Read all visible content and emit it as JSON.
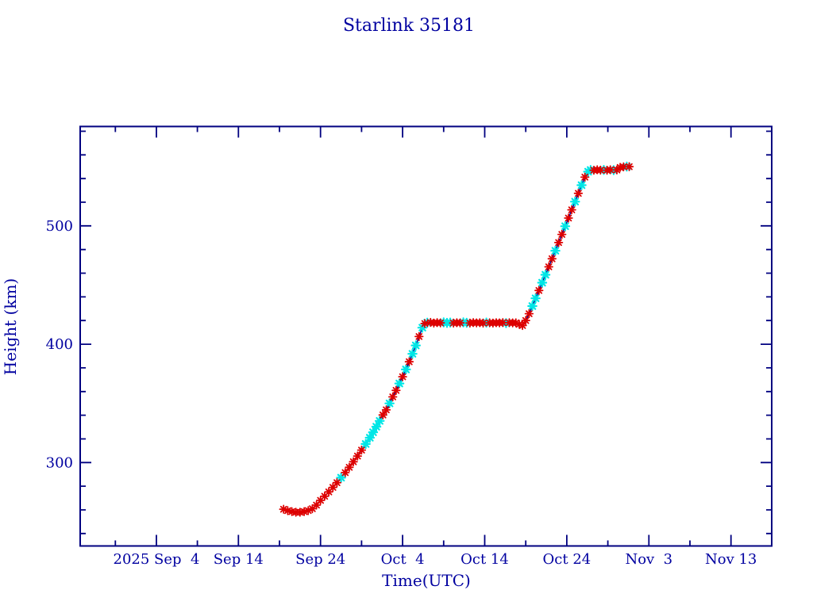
{
  "chart": {
    "title": "Starlink 35181",
    "xlabel": "Time(UTC)",
    "ylabel": "Height (km)"
  },
  "chart_data": {
    "type": "line",
    "title": "Starlink 35181",
    "xlabel": "Time(UTC)",
    "ylabel": "Height (km)",
    "x_unit": "days since 2025-09-04 00:00 UTC",
    "x_range_days": [
      -9.28,
      74.96
    ],
    "y_range_km": [
      229.5,
      584.0
    ],
    "grid": false,
    "legend": "none",
    "ticks_inward_all_sides": true,
    "x_ticks": {
      "major": [
        {
          "day": 0,
          "label": "2025 Sep  4"
        },
        {
          "day": 10,
          "label": "Sep 14"
        },
        {
          "day": 20,
          "label": "Sep 24"
        },
        {
          "day": 30,
          "label": "Oct  4"
        },
        {
          "day": 40,
          "label": "Oct 14"
        },
        {
          "day": 50,
          "label": "Oct 24"
        },
        {
          "day": 60,
          "label": "Nov  3"
        },
        {
          "day": 70,
          "label": "Nov 13"
        }
      ],
      "minor_days": [
        -5,
        5,
        15,
        25,
        35,
        45,
        55,
        65
      ]
    },
    "y_ticks": {
      "major": [
        {
          "km": 300,
          "label": "300"
        },
        {
          "km": 400,
          "label": "400"
        },
        {
          "km": 500,
          "label": "500"
        }
      ],
      "minor_km": [
        240,
        260,
        280,
        320,
        340,
        360,
        380,
        420,
        440,
        460,
        480,
        520,
        540,
        560,
        580
      ]
    },
    "colors": {
      "background": "#ffffff",
      "axis": "#000080",
      "text": "#0000a0",
      "line": "#00008b",
      "marker_red": "#dd0000",
      "marker_cyan": "#00e6e6"
    },
    "series": [
      {
        "name": "height_km",
        "marker": "asterisk",
        "points": [
          [
            15.5,
            260.5,
            "r"
          ],
          [
            16.0,
            259.3,
            "r"
          ],
          [
            16.5,
            258.5,
            "r"
          ],
          [
            17.0,
            258.0,
            "r"
          ],
          [
            17.5,
            258.0,
            "r"
          ],
          [
            18.0,
            258.5,
            "r"
          ],
          [
            18.5,
            259.4,
            "r"
          ],
          [
            19.0,
            261.0,
            "r"
          ],
          [
            19.5,
            264.0,
            "r"
          ],
          [
            20.0,
            268.0,
            "r"
          ],
          [
            20.5,
            271.5,
            "r"
          ],
          [
            21.0,
            275.2,
            "r"
          ],
          [
            21.5,
            279.0,
            "r"
          ],
          [
            22.0,
            283.0,
            "r"
          ],
          [
            22.5,
            287.2,
            "c"
          ],
          [
            23.0,
            291.5,
            "r"
          ],
          [
            23.5,
            296.0,
            "r"
          ],
          [
            24.0,
            300.7,
            "r"
          ],
          [
            24.5,
            305.5,
            "r"
          ],
          [
            25.0,
            310.5,
            "r"
          ],
          [
            25.5,
            315.7,
            "c"
          ],
          [
            26.0,
            321.0,
            "c"
          ],
          [
            26.4,
            325.6,
            "c"
          ],
          [
            26.8,
            330.3,
            "c"
          ],
          [
            27.2,
            335.2,
            "c"
          ],
          [
            27.6,
            340.2,
            "r"
          ],
          [
            28.0,
            344.5,
            "r"
          ],
          [
            28.4,
            350.0,
            "c"
          ],
          [
            28.8,
            355.5,
            "r"
          ],
          [
            29.2,
            361.0,
            "r"
          ],
          [
            29.6,
            366.8,
            "c"
          ],
          [
            30.0,
            372.5,
            "r"
          ],
          [
            30.4,
            378.7,
            "c"
          ],
          [
            30.8,
            385.2,
            "r"
          ],
          [
            31.2,
            391.9,
            "c"
          ],
          [
            31.6,
            399.0,
            "c"
          ],
          [
            32.0,
            406.5,
            "r"
          ],
          [
            32.4,
            414.0,
            "c"
          ],
          [
            32.7,
            417.5,
            "r"
          ],
          [
            33.0,
            418.2,
            "c"
          ],
          [
            33.4,
            418.4,
            "r"
          ],
          [
            33.8,
            417.9,
            "r"
          ],
          [
            34.2,
            418.3,
            "r"
          ],
          [
            34.6,
            418.0,
            "r"
          ],
          [
            35.0,
            418.4,
            "c"
          ],
          [
            35.4,
            418.0,
            "c"
          ],
          [
            35.8,
            418.3,
            "c"
          ],
          [
            36.2,
            417.9,
            "r"
          ],
          [
            36.6,
            418.2,
            "r"
          ],
          [
            37.0,
            418.0,
            "r"
          ],
          [
            37.4,
            418.4,
            "c"
          ],
          [
            37.8,
            418.1,
            "c"
          ],
          [
            38.2,
            417.9,
            "r"
          ],
          [
            38.6,
            418.3,
            "r"
          ],
          [
            39.0,
            418.0,
            "r"
          ],
          [
            39.4,
            418.2,
            "r"
          ],
          [
            39.8,
            417.9,
            "r"
          ],
          [
            40.2,
            418.3,
            "c"
          ],
          [
            40.6,
            418.1,
            "r"
          ],
          [
            41.0,
            417.9,
            "r"
          ],
          [
            41.4,
            418.2,
            "r"
          ],
          [
            41.8,
            418.0,
            "r"
          ],
          [
            42.2,
            418.3,
            "r"
          ],
          [
            42.6,
            417.9,
            "c"
          ],
          [
            43.0,
            418.2,
            "r"
          ],
          [
            43.4,
            418.0,
            "r"
          ],
          [
            43.8,
            418.1,
            "r"
          ],
          [
            44.2,
            416.8,
            "r"
          ],
          [
            44.6,
            415.8,
            "r"
          ],
          [
            45.0,
            420.0,
            "r"
          ],
          [
            45.4,
            425.8,
            "r"
          ],
          [
            45.8,
            432.2,
            "c"
          ],
          [
            46.2,
            438.8,
            "c"
          ],
          [
            46.6,
            445.4,
            "r"
          ],
          [
            47.0,
            452.0,
            "c"
          ],
          [
            47.4,
            458.7,
            "c"
          ],
          [
            47.8,
            465.4,
            "r"
          ],
          [
            48.2,
            472.2,
            "r"
          ],
          [
            48.6,
            479.0,
            "c"
          ],
          [
            49.0,
            485.9,
            "r"
          ],
          [
            49.4,
            492.8,
            "r"
          ],
          [
            49.8,
            499.7,
            "c"
          ],
          [
            50.2,
            506.6,
            "r"
          ],
          [
            50.6,
            513.6,
            "r"
          ],
          [
            51.0,
            520.5,
            "c"
          ],
          [
            51.4,
            527.5,
            "r"
          ],
          [
            51.8,
            534.4,
            "c"
          ],
          [
            52.2,
            541.2,
            "r"
          ],
          [
            52.6,
            545.8,
            "c"
          ],
          [
            52.9,
            547.2,
            "c"
          ],
          [
            53.3,
            547.0,
            "r"
          ],
          [
            53.7,
            547.4,
            "r"
          ],
          [
            54.1,
            547.1,
            "r"
          ],
          [
            54.5,
            547.3,
            "c"
          ],
          [
            54.9,
            547.0,
            "r"
          ],
          [
            55.3,
            547.4,
            "r"
          ],
          [
            55.7,
            547.1,
            "c"
          ],
          [
            56.1,
            547.3,
            "r"
          ],
          [
            56.5,
            549.4,
            "r"
          ],
          [
            56.9,
            549.9,
            "r"
          ],
          [
            57.3,
            550.1,
            "c"
          ],
          [
            57.6,
            550.0,
            "r"
          ]
        ]
      }
    ]
  }
}
